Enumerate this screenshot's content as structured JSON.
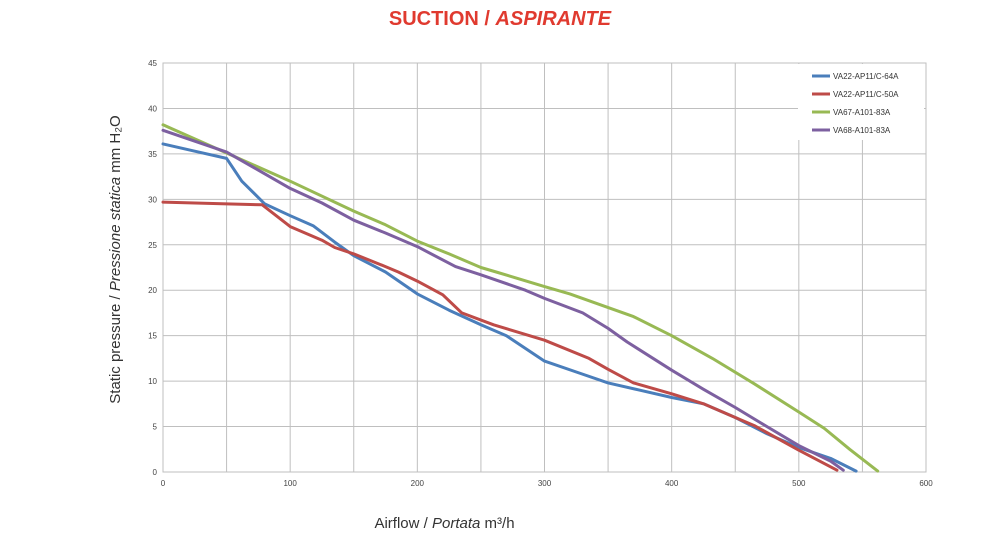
{
  "chart_data": {
    "type": "line",
    "title": "SUCTION /",
    "title_italic": "ASPIRANTE",
    "xlabel": "Airflow /",
    "xlabel_italic": "Portata",
    "xlabel_unit": "m³/h",
    "ylabel": "Static pressure /",
    "ylabel_italic": "Pressione statica",
    "ylabel_unit": "mm H₂O",
    "xlim": [
      0,
      600
    ],
    "ylim": [
      0,
      45
    ],
    "x_ticks": [
      "0",
      "100",
      "200",
      "300",
      "400",
      "500",
      "600"
    ],
    "y_ticks": [
      "0",
      "5",
      "10",
      "15",
      "20",
      "25",
      "30",
      "35",
      "40",
      "45"
    ],
    "grid": true,
    "legend_position": "top-right",
    "series": [
      {
        "name": "VA22-AP11/C-64A",
        "color": "#4a7ebb",
        "points": [
          [
            0,
            36.1
          ],
          [
            25,
            35.3
          ],
          [
            50,
            34.5
          ],
          [
            62,
            32
          ],
          [
            80,
            29.5
          ],
          [
            100,
            28.2
          ],
          [
            118,
            27.1
          ],
          [
            135,
            25.3
          ],
          [
            150,
            23.8
          ],
          [
            175,
            22
          ],
          [
            200,
            19.6
          ],
          [
            225,
            17.8
          ],
          [
            250,
            16.2
          ],
          [
            270,
            15
          ],
          [
            300,
            12.2
          ],
          [
            325,
            11
          ],
          [
            350,
            9.8
          ],
          [
            375,
            9
          ],
          [
            400,
            8.2
          ],
          [
            425,
            7.5
          ],
          [
            450,
            6
          ],
          [
            475,
            4.2
          ],
          [
            500,
            2.7
          ],
          [
            525,
            1.5
          ],
          [
            545,
            0.1
          ]
        ]
      },
      {
        "name": "VA22-AP11/C-50A",
        "color": "#be4b48",
        "points": [
          [
            0,
            29.7
          ],
          [
            25,
            29.6
          ],
          [
            50,
            29.5
          ],
          [
            78,
            29.4
          ],
          [
            100,
            27
          ],
          [
            125,
            25.5
          ],
          [
            135,
            24.7
          ],
          [
            150,
            24
          ],
          [
            175,
            22.6
          ],
          [
            185,
            22
          ],
          [
            200,
            21
          ],
          [
            220,
            19.5
          ],
          [
            235,
            17.5
          ],
          [
            260,
            16.2
          ],
          [
            300,
            14.5
          ],
          [
            335,
            12.5
          ],
          [
            350,
            11.3
          ],
          [
            370,
            9.8
          ],
          [
            400,
            8.6
          ],
          [
            425,
            7.5
          ],
          [
            450,
            6
          ],
          [
            465,
            5.1
          ],
          [
            500,
            2.4
          ],
          [
            530,
            0.2
          ]
        ]
      },
      {
        "name": "VA67-A101-83A",
        "color": "#98b954",
        "points": [
          [
            0,
            38.2
          ],
          [
            50,
            35.1
          ],
          [
            100,
            32
          ],
          [
            150,
            28.7
          ],
          [
            175,
            27.2
          ],
          [
            200,
            25.4
          ],
          [
            225,
            24
          ],
          [
            250,
            22.5
          ],
          [
            262,
            22
          ],
          [
            300,
            20.4
          ],
          [
            320,
            19.6
          ],
          [
            370,
            17.1
          ],
          [
            400,
            15
          ],
          [
            432,
            12.5
          ],
          [
            465,
            9.7
          ],
          [
            500,
            6.6
          ],
          [
            520,
            4.8
          ],
          [
            540,
            2.5
          ],
          [
            562,
            0.1
          ]
        ]
      },
      {
        "name": "VA68-A101-83A",
        "color": "#7d60a0",
        "points": [
          [
            0,
            37.6
          ],
          [
            25,
            36.4
          ],
          [
            50,
            35.2
          ],
          [
            75,
            33.2
          ],
          [
            100,
            31.2
          ],
          [
            125,
            29.6
          ],
          [
            150,
            27.7
          ],
          [
            175,
            26.3
          ],
          [
            200,
            24.8
          ],
          [
            230,
            22.6
          ],
          [
            250,
            21.7
          ],
          [
            285,
            20
          ],
          [
            300,
            19.1
          ],
          [
            330,
            17.5
          ],
          [
            350,
            15.8
          ],
          [
            365,
            14.3
          ],
          [
            400,
            11.2
          ],
          [
            425,
            9.1
          ],
          [
            450,
            7.1
          ],
          [
            475,
            5
          ],
          [
            500,
            2.9
          ],
          [
            525,
            1.2
          ],
          [
            535,
            0.2
          ]
        ]
      }
    ]
  }
}
